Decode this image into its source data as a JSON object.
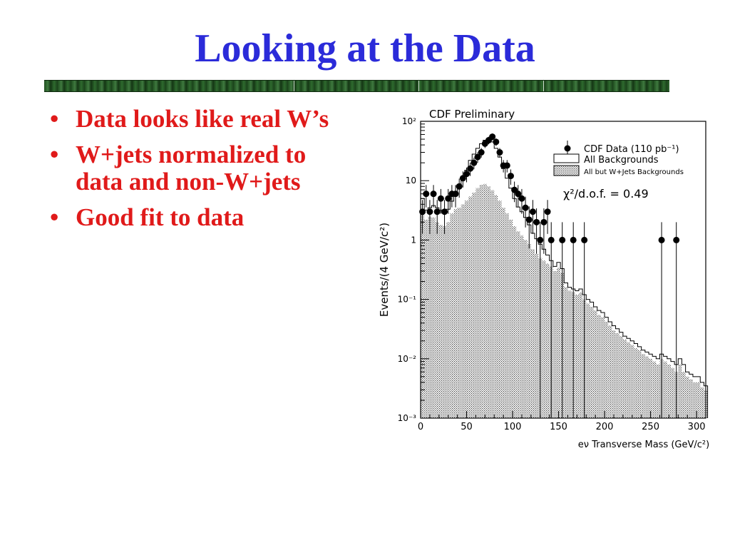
{
  "slide": {
    "title": "Looking at the Data",
    "bullets": [
      "Data looks like real W’s",
      "W+jets normalized to data and non-W+jets",
      "Good fit to data"
    ],
    "bullet_glyph": "•",
    "colors": {
      "title": "#2b2bd9",
      "bullets": "#e01a1a",
      "divider": "#2e6a2e"
    }
  },
  "chart_data": {
    "type": "bar",
    "title": "CDF Preliminary",
    "xlabel": "eν Transverse Mass (GeV/c²)",
    "ylabel": "Events/(4 GeV/c²)",
    "yscale": "log",
    "xlim": [
      0,
      310
    ],
    "ylim": [
      0.001,
      100
    ],
    "bin_width": 4,
    "x_ticks": [
      "0",
      "50",
      "100",
      "150",
      "200",
      "250",
      "300"
    ],
    "x_tick_values": [
      0,
      50,
      100,
      150,
      200,
      250,
      300
    ],
    "y_ticks": [
      "10⁻³",
      "10⁻²",
      "10⁻¹",
      "1",
      "10",
      "10²"
    ],
    "y_tick_values": [
      0.001,
      0.01,
      0.1,
      1,
      10,
      100
    ],
    "annotation": "χ²/d.o.f. = 0.49",
    "legend_position": "top-right",
    "series": [
      {
        "name": "All Backgrounds",
        "style": "hollow-step",
        "values": [
          5,
          3.2,
          3.5,
          3.8,
          3.5,
          3.2,
          3,
          3.3,
          4.5,
          6,
          8,
          11,
          15,
          22,
          28,
          35,
          42,
          48,
          50,
          45,
          35,
          25,
          16,
          11,
          7.5,
          5,
          3.6,
          3,
          2.4,
          1.8,
          1.3,
          1.05,
          0.85,
          0.7,
          0.56,
          0.45,
          0.36,
          0.42,
          0.33,
          0.19,
          0.16,
          0.15,
          0.14,
          0.15,
          0.12,
          0.1,
          0.09,
          0.075,
          0.065,
          0.06,
          0.05,
          0.042,
          0.036,
          0.032,
          0.028,
          0.024,
          0.022,
          0.02,
          0.018,
          0.016,
          0.014,
          0.013,
          0.012,
          0.011,
          0.01,
          0.012,
          0.011,
          0.01,
          0.009,
          0.008,
          0.01,
          0.008,
          0.006,
          0.0055,
          0.005,
          0.005,
          0.004,
          0.0035
        ]
      },
      {
        "name": "All but W+Jets Backgrounds",
        "style": "hatched",
        "values": [
          3,
          2.2,
          2.5,
          2.4,
          2.0,
          1.8,
          1.7,
          2.0,
          2.8,
          3.3,
          3.5,
          4.0,
          4.6,
          5.4,
          6.3,
          7.5,
          8.5,
          8.8,
          8.0,
          6.9,
          5.7,
          4.6,
          3.5,
          2.8,
          2.2,
          1.7,
          1.4,
          1.2,
          1.0,
          0.85,
          0.7,
          0.58,
          0.5,
          0.45,
          0.4,
          0.36,
          0.3,
          0.34,
          0.28,
          0.16,
          0.14,
          0.13,
          0.12,
          0.13,
          0.1,
          0.085,
          0.075,
          0.065,
          0.055,
          0.05,
          0.042,
          0.036,
          0.03,
          0.027,
          0.024,
          0.021,
          0.019,
          0.017,
          0.015,
          0.014,
          0.012,
          0.011,
          0.01,
          0.009,
          0.008,
          0.01,
          0.009,
          0.008,
          0.007,
          0.006,
          0.008,
          0.006,
          0.005,
          0.0045,
          0.004,
          0.004,
          0.0033,
          0.003
        ]
      },
      {
        "name": "CDF Data (110 pb⁻¹)",
        "style": "points-with-errors",
        "points": [
          {
            "x": 2,
            "y": 3
          },
          {
            "x": 6,
            "y": 6
          },
          {
            "x": 10,
            "y": 3
          },
          {
            "x": 14,
            "y": 6
          },
          {
            "x": 18,
            "y": 3
          },
          {
            "x": 22,
            "y": 5
          },
          {
            "x": 26,
            "y": 3
          },
          {
            "x": 30,
            "y": 5
          },
          {
            "x": 34,
            "y": 6
          },
          {
            "x": 38,
            "y": 6
          },
          {
            "x": 42,
            "y": 8
          },
          {
            "x": 46,
            "y": 11
          },
          {
            "x": 50,
            "y": 13
          },
          {
            "x": 54,
            "y": 16
          },
          {
            "x": 58,
            "y": 20
          },
          {
            "x": 62,
            "y": 25
          },
          {
            "x": 66,
            "y": 30
          },
          {
            "x": 70,
            "y": 42
          },
          {
            "x": 74,
            "y": 48
          },
          {
            "x": 78,
            "y": 55
          },
          {
            "x": 82,
            "y": 45
          },
          {
            "x": 86,
            "y": 30
          },
          {
            "x": 90,
            "y": 18
          },
          {
            "x": 94,
            "y": 18
          },
          {
            "x": 98,
            "y": 12
          },
          {
            "x": 102,
            "y": 7
          },
          {
            "x": 106,
            "y": 6
          },
          {
            "x": 110,
            "y": 5
          },
          {
            "x": 114,
            "y": 3.5
          },
          {
            "x": 118,
            "y": 2.2
          },
          {
            "x": 122,
            "y": 3
          },
          {
            "x": 126,
            "y": 2
          },
          {
            "x": 130,
            "y": 1
          },
          {
            "x": 134,
            "y": 2
          },
          {
            "x": 138,
            "y": 3
          },
          {
            "x": 142,
            "y": 1
          },
          {
            "x": 154,
            "y": 1
          },
          {
            "x": 166,
            "y": 1
          },
          {
            "x": 178,
            "y": 1
          },
          {
            "x": 262,
            "y": 1
          },
          {
            "x": 278,
            "y": 1
          }
        ]
      }
    ],
    "legend": [
      {
        "label": "CDF Data (110 pb⁻¹)",
        "symbol": "point"
      },
      {
        "label": "All Backgrounds",
        "symbol": "hollow"
      },
      {
        "label": "All but W+Jets Backgrounds",
        "symbol": "hatched"
      }
    ]
  }
}
